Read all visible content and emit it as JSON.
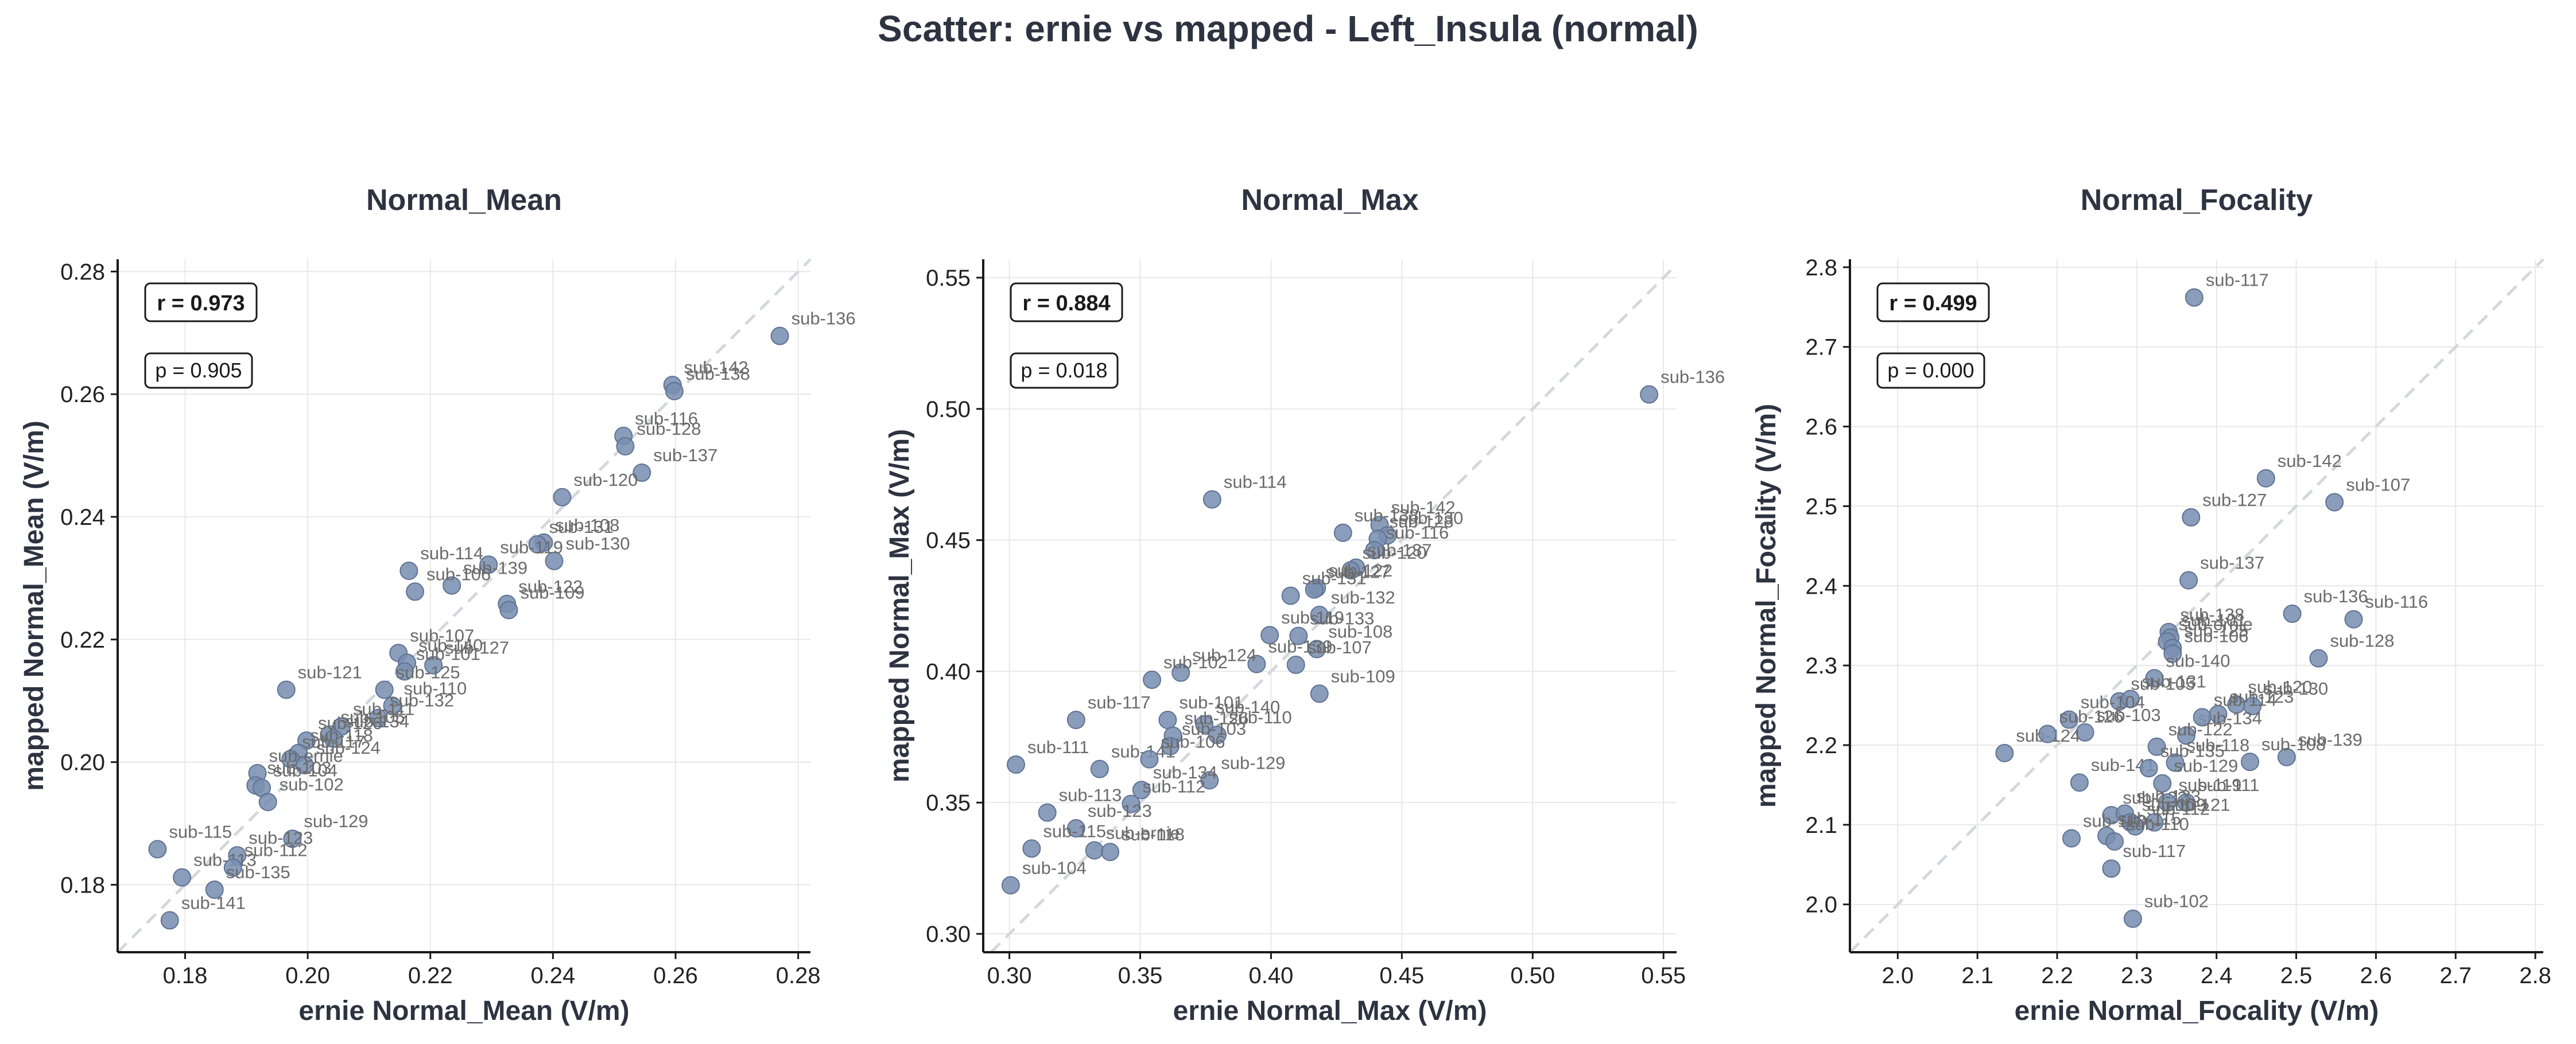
{
  "suptitle": "Scatter: ernie vs mapped - Left_Insula (normal)",
  "chart_data": [
    {
      "type": "scatter",
      "title": "Normal_Mean",
      "xlabel": "ernie Normal_Mean (V/m)",
      "ylabel": "mapped Normal_Mean (V/m)",
      "xlim": [
        0.169,
        0.282
      ],
      "ylim": [
        0.169,
        0.282
      ],
      "xticks": [
        0.18,
        0.2,
        0.22,
        0.24,
        0.26,
        0.28
      ],
      "yticks": [
        0.18,
        0.2,
        0.22,
        0.24,
        0.26,
        0.28
      ],
      "tick_decimals": 2,
      "grid": true,
      "identity_line": true,
      "stats": {
        "r": "r = 0.973",
        "p": "p = 0.905"
      },
      "points": [
        {
          "label": "sub-136",
          "x": 0.277,
          "y": 0.2695
        },
        {
          "label": "sub-142",
          "x": 0.2595,
          "y": 0.2615
        },
        {
          "label": "sub-138",
          "x": 0.2598,
          "y": 0.2605
        },
        {
          "label": "sub-116",
          "x": 0.2515,
          "y": 0.2532
        },
        {
          "label": "sub-128",
          "x": 0.2518,
          "y": 0.2515
        },
        {
          "label": "sub-137",
          "x": 0.2545,
          "y": 0.2472
        },
        {
          "label": "sub-120",
          "x": 0.2415,
          "y": 0.2432
        },
        {
          "label": "sub-108",
          "x": 0.2385,
          "y": 0.2358
        },
        {
          "label": "sub-131",
          "x": 0.2375,
          "y": 0.2355
        },
        {
          "label": "sub-130",
          "x": 0.2402,
          "y": 0.2328
        },
        {
          "label": "sub-114",
          "x": 0.2165,
          "y": 0.2312
        },
        {
          "label": "sub-119",
          "x": 0.2295,
          "y": 0.2322
        },
        {
          "label": "sub-139",
          "x": 0.2235,
          "y": 0.2288
        },
        {
          "label": "sub-122",
          "x": 0.2325,
          "y": 0.2258
        },
        {
          "label": "sub-109",
          "x": 0.2328,
          "y": 0.2248
        },
        {
          "label": "sub-106",
          "x": 0.2175,
          "y": 0.2278
        },
        {
          "label": "sub-107",
          "x": 0.2148,
          "y": 0.2178
        },
        {
          "label": "sub-140",
          "x": 0.2162,
          "y": 0.2162
        },
        {
          "label": "sub-127",
          "x": 0.2205,
          "y": 0.2158
        },
        {
          "label": "sub-101",
          "x": 0.2158,
          "y": 0.2148
        },
        {
          "label": "sub-121",
          "x": 0.1965,
          "y": 0.2118
        },
        {
          "label": "sub-125",
          "x": 0.2125,
          "y": 0.2118
        },
        {
          "label": "sub-110",
          "x": 0.2138,
          "y": 0.2092
        },
        {
          "label": "sub-132",
          "x": 0.2115,
          "y": 0.2072
        },
        {
          "label": "sub-111",
          "x": 0.2055,
          "y": 0.2058
        },
        {
          "label": "sub-105",
          "x": 0.2035,
          "y": 0.2045
        },
        {
          "label": "sub-134",
          "x": 0.2042,
          "y": 0.2038
        },
        {
          "label": "sub-126",
          "x": 0.1998,
          "y": 0.2035
        },
        {
          "label": "sub-118",
          "x": 0.1985,
          "y": 0.2015
        },
        {
          "label": "sub-117",
          "x": 0.1972,
          "y": 0.2005
        },
        {
          "label": "sub-124",
          "x": 0.1995,
          "y": 0.1995
        },
        {
          "label": "sub-ernie",
          "x": 0.1918,
          "y": 0.1982
        },
        {
          "label": "sub-103",
          "x": 0.1915,
          "y": 0.1962
        },
        {
          "label": "sub-104",
          "x": 0.1925,
          "y": 0.1958
        },
        {
          "label": "sub-102",
          "x": 0.1935,
          "y": 0.1935
        },
        {
          "label": "sub-129",
          "x": 0.1975,
          "y": 0.1875
        },
        {
          "label": "sub-115",
          "x": 0.1755,
          "y": 0.1858
        },
        {
          "label": "sub-123",
          "x": 0.1885,
          "y": 0.1848
        },
        {
          "label": "sub-113",
          "x": 0.1795,
          "y": 0.1812
        },
        {
          "label": "sub-112",
          "x": 0.1878,
          "y": 0.1828
        },
        {
          "label": "sub-135",
          "x": 0.1848,
          "y": 0.1792
        },
        {
          "label": "sub-141",
          "x": 0.1775,
          "y": 0.1742
        }
      ]
    },
    {
      "type": "scatter",
      "title": "Normal_Max",
      "xlabel": "ernie Normal_Max (V/m)",
      "ylabel": "mapped Normal_Max (V/m)",
      "xlim": [
        0.29,
        0.555
      ],
      "ylim": [
        0.293,
        0.557
      ],
      "xticks": [
        0.3,
        0.35,
        0.4,
        0.45,
        0.5,
        0.55
      ],
      "yticks": [
        0.3,
        0.35,
        0.4,
        0.45,
        0.5,
        0.55
      ],
      "tick_decimals": 2,
      "grid": true,
      "identity_line": true,
      "stats": {
        "r": "r = 0.884",
        "p": "p = 0.018"
      },
      "points": [
        {
          "label": "sub-136",
          "x": 0.5445,
          "y": 0.5055
        },
        {
          "label": "sub-114",
          "x": 0.3775,
          "y": 0.4655
        },
        {
          "label": "sub-142",
          "x": 0.4415,
          "y": 0.4558
        },
        {
          "label": "sub-138",
          "x": 0.4275,
          "y": 0.4528
        },
        {
          "label": "sub-130",
          "x": 0.4445,
          "y": 0.4518
        },
        {
          "label": "sub-128",
          "x": 0.4408,
          "y": 0.4505
        },
        {
          "label": "sub-116",
          "x": 0.4395,
          "y": 0.4462
        },
        {
          "label": "sub-137",
          "x": 0.4325,
          "y": 0.4395
        },
        {
          "label": "sub-120",
          "x": 0.4305,
          "y": 0.4385
        },
        {
          "label": "sub-122",
          "x": 0.4175,
          "y": 0.4318
        },
        {
          "label": "sub-127",
          "x": 0.4165,
          "y": 0.4312
        },
        {
          "label": "sub-131",
          "x": 0.4075,
          "y": 0.4288
        },
        {
          "label": "sub-132",
          "x": 0.4185,
          "y": 0.4215
        },
        {
          "label": "sub-119",
          "x": 0.3995,
          "y": 0.4138
        },
        {
          "label": "sub-133",
          "x": 0.4105,
          "y": 0.4135
        },
        {
          "label": "sub-108",
          "x": 0.4175,
          "y": 0.4085
        },
        {
          "label": "sub-107",
          "x": 0.4095,
          "y": 0.4025
        },
        {
          "label": "sub-109",
          "x": 0.4185,
          "y": 0.3915
        },
        {
          "label": "sub-139",
          "x": 0.3945,
          "y": 0.4028
        },
        {
          "label": "sub-124",
          "x": 0.3655,
          "y": 0.3995
        },
        {
          "label": "sub-102",
          "x": 0.3545,
          "y": 0.3968
        },
        {
          "label": "sub-101",
          "x": 0.3605,
          "y": 0.3815
        },
        {
          "label": "sub-140",
          "x": 0.3745,
          "y": 0.3798
        },
        {
          "label": "sub-126",
          "x": 0.3625,
          "y": 0.3755
        },
        {
          "label": "sub-110",
          "x": 0.3795,
          "y": 0.3758
        },
        {
          "label": "sub-117",
          "x": 0.3255,
          "y": 0.3815
        },
        {
          "label": "sub-103",
          "x": 0.3615,
          "y": 0.3715
        },
        {
          "label": "sub-141",
          "x": 0.3345,
          "y": 0.3628
        },
        {
          "label": "sub-106",
          "x": 0.3535,
          "y": 0.3665
        },
        {
          "label": "sub-129",
          "x": 0.3765,
          "y": 0.3585
        },
        {
          "label": "sub-134",
          "x": 0.3505,
          "y": 0.3548
        },
        {
          "label": "sub-111",
          "x": 0.3025,
          "y": 0.3645
        },
        {
          "label": "sub-112",
          "x": 0.3465,
          "y": 0.3495
        },
        {
          "label": "sub-113",
          "x": 0.3145,
          "y": 0.3462
        },
        {
          "label": "sub-123",
          "x": 0.3255,
          "y": 0.3402
        },
        {
          "label": "sub-ernie",
          "x": 0.3325,
          "y": 0.3318
        },
        {
          "label": "sub-118",
          "x": 0.3385,
          "y": 0.3312
        },
        {
          "label": "sub-115",
          "x": 0.3085,
          "y": 0.3325
        },
        {
          "label": "sub-104",
          "x": 0.3005,
          "y": 0.3185
        }
      ]
    },
    {
      "type": "scatter",
      "title": "Normal_Focality",
      "xlabel": "ernie Normal_Focality (V/m)",
      "ylabel": "mapped Normal_Focality (V/m)",
      "xlim": [
        1.94,
        2.81
      ],
      "ylim": [
        1.94,
        2.81
      ],
      "xticks": [
        2.0,
        2.1,
        2.2,
        2.3,
        2.4,
        2.5,
        2.6,
        2.7,
        2.8
      ],
      "yticks": [
        2.0,
        2.1,
        2.2,
        2.3,
        2.4,
        2.5,
        2.6,
        2.7,
        2.8
      ],
      "tick_decimals": 1,
      "grid": true,
      "identity_line": true,
      "stats": {
        "r": "r = 0.499",
        "p": "p = 0.000"
      },
      "points": [
        {
          "label": "sub-117",
          "x": 2.372,
          "y": 2.762
        },
        {
          "label": "sub-142",
          "x": 2.462,
          "y": 2.535
        },
        {
          "label": "sub-107",
          "x": 2.548,
          "y": 2.505
        },
        {
          "label": "sub-127",
          "x": 2.368,
          "y": 2.486
        },
        {
          "label": "sub-137",
          "x": 2.365,
          "y": 2.407
        },
        {
          "label": "sub-136",
          "x": 2.495,
          "y": 2.365
        },
        {
          "label": "sub-116",
          "x": 2.572,
          "y": 2.358
        },
        {
          "label": "sub-138",
          "x": 2.34,
          "y": 2.342
        },
        {
          "label": "sub-101",
          "x": 2.342,
          "y": 2.335
        },
        {
          "label": "sub-ernie",
          "x": 2.338,
          "y": 2.33
        },
        {
          "label": "sub-125",
          "x": 2.345,
          "y": 2.322
        },
        {
          "label": "sub-106",
          "x": 2.345,
          "y": 2.315
        },
        {
          "label": "sub-128",
          "x": 2.528,
          "y": 2.309
        },
        {
          "label": "sub-140",
          "x": 2.322,
          "y": 2.284
        },
        {
          "label": "sub-120",
          "x": 2.425,
          "y": 2.251
        },
        {
          "label": "sub-123",
          "x": 2.402,
          "y": 2.239
        },
        {
          "label": "sub-130",
          "x": 2.445,
          "y": 2.249
        },
        {
          "label": "sub-105",
          "x": 2.278,
          "y": 2.255
        },
        {
          "label": "sub-131",
          "x": 2.292,
          "y": 2.258
        },
        {
          "label": "sub-104",
          "x": 2.215,
          "y": 2.232
        },
        {
          "label": "sub-103",
          "x": 2.235,
          "y": 2.216
        },
        {
          "label": "sub-124",
          "x": 2.134,
          "y": 2.19
        },
        {
          "label": "sub-126",
          "x": 2.188,
          "y": 2.214
        },
        {
          "label": "sub-134",
          "x": 2.362,
          "y": 2.212
        },
        {
          "label": "sub-114",
          "x": 2.382,
          "y": 2.235
        },
        {
          "label": "sub-122",
          "x": 2.325,
          "y": 2.198
        },
        {
          "label": "sub-139",
          "x": 2.488,
          "y": 2.185
        },
        {
          "label": "sub-141",
          "x": 2.228,
          "y": 2.153
        },
        {
          "label": "sub-118",
          "x": 2.348,
          "y": 2.178
        },
        {
          "label": "sub-108",
          "x": 2.442,
          "y": 2.179
        },
        {
          "label": "sub-135",
          "x": 2.315,
          "y": 2.171
        },
        {
          "label": "sub-129",
          "x": 2.332,
          "y": 2.152
        },
        {
          "label": "sub-132",
          "x": 2.268,
          "y": 2.112
        },
        {
          "label": "sub-119",
          "x": 2.338,
          "y": 2.128
        },
        {
          "label": "sub-111",
          "x": 2.362,
          "y": 2.128
        },
        {
          "label": "sub-133",
          "x": 2.285,
          "y": 2.114
        },
        {
          "label": "sub-109",
          "x": 2.292,
          "y": 2.103
        },
        {
          "label": "sub-112",
          "x": 2.298,
          "y": 2.098
        },
        {
          "label": "sub-121",
          "x": 2.322,
          "y": 2.103
        },
        {
          "label": "sub-113",
          "x": 2.218,
          "y": 2.083
        },
        {
          "label": "sub-115",
          "x": 2.262,
          "y": 2.086
        },
        {
          "label": "sub-110",
          "x": 2.272,
          "y": 2.079
        },
        {
          "label": "sub-117b",
          "x": 2.268,
          "y": 2.045
        },
        {
          "label": "sub-102",
          "x": 2.295,
          "y": 1.982
        }
      ]
    }
  ]
}
